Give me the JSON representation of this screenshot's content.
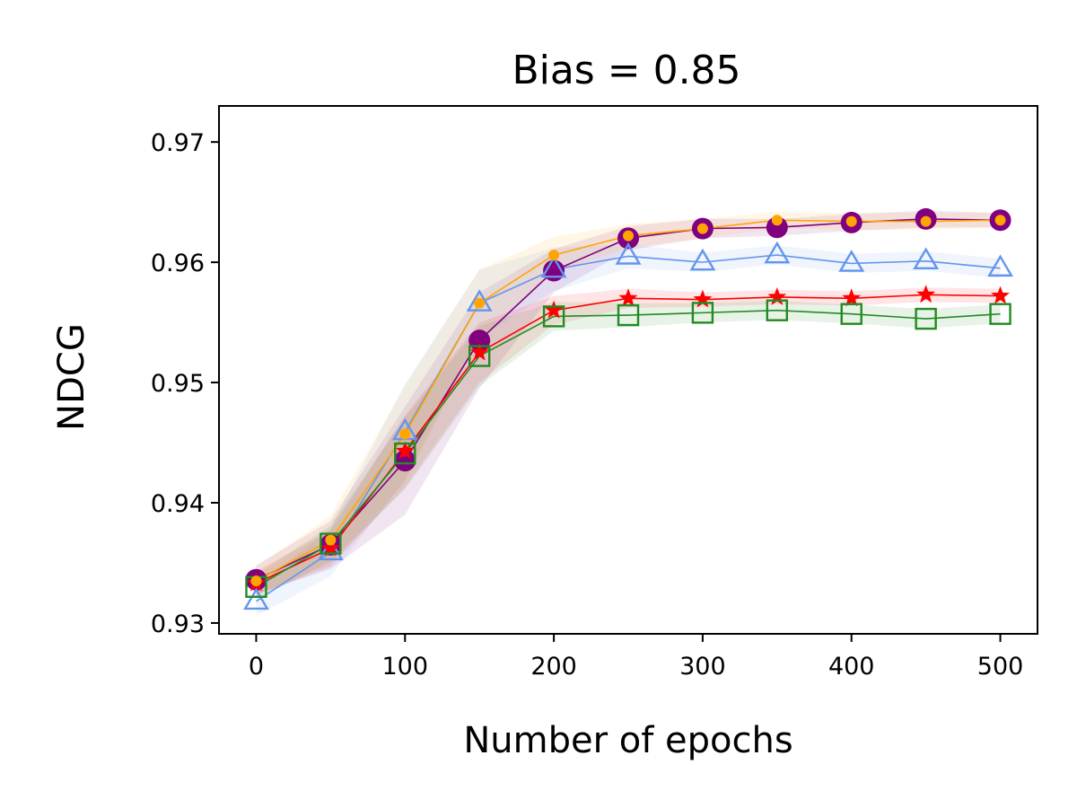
{
  "chart_data": {
    "type": "line",
    "title": "Bias = 0.85",
    "xlabel": "Number of epochs",
    "ylabel": "NDCG",
    "xlim": [
      -25,
      525
    ],
    "ylim": [
      0.9291,
      0.973
    ],
    "xticks": [
      0,
      100,
      200,
      300,
      400,
      500
    ],
    "xtick_labels": [
      "0",
      "100",
      "200",
      "300",
      "400",
      "500"
    ],
    "yticks": [
      0.93,
      0.94,
      0.95,
      0.96,
      0.97
    ],
    "ytick_labels": [
      "0.93",
      "0.94",
      "0.95",
      "0.96",
      "0.97"
    ],
    "grid": false,
    "legend": "none",
    "x": [
      0,
      50,
      100,
      150,
      200,
      250,
      300,
      350,
      400,
      450,
      500
    ],
    "series": [
      {
        "color": "#800080",
        "marker": "circle-filled",
        "values": [
          0.9336,
          0.9365,
          0.9435,
          0.9535,
          0.9593,
          0.962,
          0.9628,
          0.9629,
          0.9633,
          0.9636,
          0.9635
        ],
        "band": [
          0.0012,
          0.002,
          0.0045,
          0.004,
          0.0018,
          0.001,
          0.0008,
          0.0007,
          0.0007,
          0.0007,
          0.0006
        ]
      },
      {
        "color": "#6495ed",
        "marker": "triangle-open",
        "values": [
          0.9318,
          0.9359,
          0.9459,
          0.9566,
          0.9594,
          0.9605,
          0.96,
          0.9606,
          0.9599,
          0.9601,
          0.9595
        ],
        "band": [
          0.0012,
          0.002,
          0.004,
          0.0028,
          0.0018,
          0.001,
          0.0008,
          0.0008,
          0.0008,
          0.0008,
          0.0008
        ]
      },
      {
        "color": "#ff0000",
        "marker": "star-filled",
        "values": [
          0.9333,
          0.9362,
          0.9443,
          0.9525,
          0.956,
          0.957,
          0.9569,
          0.9571,
          0.957,
          0.9573,
          0.9572
        ],
        "band": [
          0.001,
          0.0015,
          0.003,
          0.0025,
          0.0012,
          0.0008,
          0.0006,
          0.0006,
          0.0006,
          0.0006,
          0.0006
        ]
      },
      {
        "color": "#228b22",
        "marker": "square-open",
        "values": [
          0.933,
          0.9366,
          0.9441,
          0.9522,
          0.9555,
          0.9556,
          0.9558,
          0.956,
          0.9557,
          0.9553,
          0.9557
        ],
        "band": [
          0.001,
          0.0015,
          0.003,
          0.0025,
          0.0012,
          0.001,
          0.0008,
          0.0008,
          0.0008,
          0.0008,
          0.0008
        ]
      },
      {
        "color": "#ffa500",
        "marker": "dot-small",
        "values": [
          0.9335,
          0.9369,
          0.9457,
          0.9566,
          0.9606,
          0.9622,
          0.9628,
          0.9635,
          0.9634,
          0.9634,
          0.9635
        ],
        "band": [
          0.0012,
          0.002,
          0.004,
          0.0028,
          0.0015,
          0.001,
          0.0008,
          0.0007,
          0.0007,
          0.0007,
          0.0006
        ]
      }
    ]
  }
}
